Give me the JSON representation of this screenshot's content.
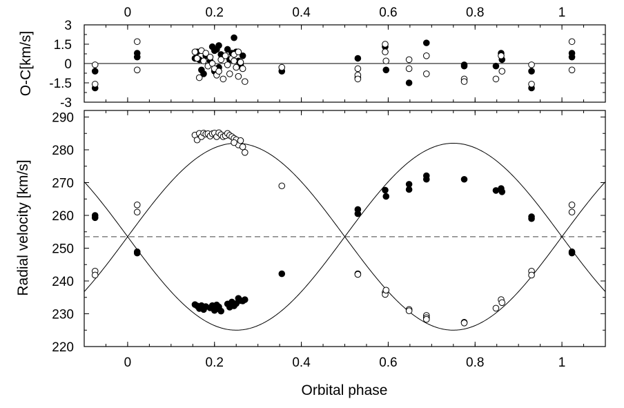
{
  "chart_data": [
    {
      "type": "scatter",
      "panel": "residuals",
      "title": "",
      "xlabel": "",
      "ylabel": "O-C[km/s]",
      "xlim": [
        -0.1,
        1.1
      ],
      "ylim": [
        -3,
        3
      ],
      "xticks": [
        0,
        0.2,
        0.4,
        0.6,
        0.8,
        1
      ],
      "xtick_labels": [
        "0",
        "0.2",
        "0.4",
        "0.6",
        "0.8",
        "1"
      ],
      "yticks": [
        3,
        1.5,
        0,
        -1.5,
        -3
      ],
      "ytick_labels": [
        "3",
        "1.5",
        "0",
        "-1.5",
        "-3"
      ],
      "reference_line": 0,
      "grid": false,
      "series": [
        {
          "marker": "filled",
          "x": [
            -0.075,
            -0.075,
            0.022,
            0.022,
            0.155,
            0.16,
            0.165,
            0.17,
            0.175,
            0.18,
            0.19,
            0.195,
            0.2,
            0.205,
            0.21,
            0.215,
            0.2,
            0.21,
            0.23,
            0.24,
            0.245,
            0.25,
            0.255,
            0.26,
            0.265,
            0.235,
            0.355,
            0.53,
            0.53,
            0.593,
            0.595,
            0.648,
            0.688,
            0.775,
            0.775,
            0.848,
            0.86,
            0.862,
            0.93,
            0.93,
            1.023,
            1.023
          ],
          "y": [
            -0.6,
            -1.9,
            0.5,
            0.8,
            0.4,
            0.9,
            0.3,
            -0.5,
            -0.8,
            0.6,
            0.2,
            1.3,
            1.0,
            1.1,
            1.4,
            0.7,
            -0.6,
            -0.3,
            1.1,
            0.8,
            2.0,
            0.9,
            0.2,
            -0.1,
            0.6,
            0.3,
            -0.6,
            0.4,
            -1.1,
            1.3,
            -0.5,
            -1.5,
            1.6,
            -0.2,
            -0.1,
            -0.2,
            0.8,
            0.3,
            -0.6,
            -1.9,
            0.5,
            0.8
          ]
        },
        {
          "marker": "open",
          "x": [
            -0.075,
            -0.075,
            0.022,
            0.022,
            0.155,
            0.16,
            0.165,
            0.17,
            0.175,
            0.18,
            0.185,
            0.19,
            0.195,
            0.2,
            0.205,
            0.21,
            0.215,
            0.22,
            0.225,
            0.23,
            0.235,
            0.24,
            0.245,
            0.25,
            0.255,
            0.26,
            0.265,
            0.27,
            0.245,
            0.255,
            0.355,
            0.53,
            0.53,
            0.53,
            0.593,
            0.593,
            0.595,
            0.648,
            0.648,
            0.688,
            0.688,
            0.775,
            0.775,
            0.848,
            0.86,
            0.862,
            0.93,
            0.93,
            1.023,
            1.023
          ],
          "y": [
            -0.1,
            -1.6,
            1.7,
            -0.5,
            0.9,
            0.4,
            -1.1,
            1.0,
            0.2,
            0.8,
            -0.2,
            0.5,
            0.0,
            -0.4,
            -0.9,
            -0.6,
            0.3,
            -1.2,
            0.6,
            -0.1,
            -0.8,
            0.4,
            0.7,
            -0.3,
            0.9,
            0.1,
            -0.4,
            -1.4,
            0.2,
            -1.0,
            -0.3,
            -0.4,
            -0.9,
            -1.2,
            1.5,
            0.9,
            0.2,
            0.3,
            -0.4,
            0.6,
            -0.8,
            -1.2,
            -1.4,
            -1.2,
            0.6,
            -0.6,
            -0.1,
            -1.6,
            1.7,
            -0.5
          ]
        }
      ]
    },
    {
      "type": "scatter",
      "panel": "radial-velocity",
      "title": "",
      "xlabel": "Orbital phase",
      "ylabel": "Radial velocity [km/s]",
      "xlim": [
        -0.1,
        1.1
      ],
      "ylim": [
        220,
        292
      ],
      "xticks": [
        0,
        0.2,
        0.4,
        0.6,
        0.8,
        1
      ],
      "xtick_labels": [
        "0",
        "0.2",
        "0.4",
        "0.6",
        "0.8",
        "1"
      ],
      "yticks": [
        220,
        230,
        240,
        250,
        260,
        270,
        280,
        290
      ],
      "ytick_labels": [
        "220",
        "230",
        "240",
        "250",
        "260",
        "270",
        "280",
        "290"
      ],
      "systemic_velocity": 253.5,
      "grid": false,
      "series": [
        {
          "marker": "filled",
          "x": [
            -0.075,
            -0.075,
            0.022,
            0.022,
            0.155,
            0.16,
            0.165,
            0.17,
            0.175,
            0.18,
            0.19,
            0.195,
            0.2,
            0.205,
            0.21,
            0.215,
            0.2,
            0.21,
            0.23,
            0.235,
            0.24,
            0.245,
            0.25,
            0.255,
            0.26,
            0.265,
            0.27,
            0.355,
            0.53,
            0.53,
            0.593,
            0.595,
            0.648,
            0.648,
            0.688,
            0.688,
            0.775,
            0.848,
            0.86,
            0.862,
            0.93,
            0.93,
            1.023,
            1.023
          ],
          "y": [
            259.3,
            260.0,
            248.9,
            248.5,
            232.8,
            232.4,
            231.6,
            232.5,
            231.3,
            232.2,
            231.8,
            232.5,
            231.0,
            232.7,
            231.5,
            230.8,
            231.9,
            232.1,
            233.0,
            232.0,
            233.6,
            232.4,
            233.1,
            234.7,
            234.0,
            233.9,
            234.3,
            242.2,
            261.8,
            260.5,
            267.7,
            265.8,
            269.5,
            267.9,
            272.1,
            271.0,
            271.0,
            267.6,
            268.2,
            267.2,
            259.6,
            259.0,
            248.9,
            248.5
          ]
        },
        {
          "marker": "open",
          "x": [
            -0.075,
            -0.075,
            0.022,
            0.022,
            0.155,
            0.16,
            0.165,
            0.17,
            0.175,
            0.18,
            0.185,
            0.19,
            0.195,
            0.2,
            0.205,
            0.21,
            0.215,
            0.22,
            0.225,
            0.23,
            0.235,
            0.24,
            0.245,
            0.25,
            0.255,
            0.26,
            0.265,
            0.27,
            0.245,
            0.355,
            0.53,
            0.53,
            0.593,
            0.593,
            0.595,
            0.648,
            0.648,
            0.688,
            0.688,
            0.688,
            0.775,
            0.775,
            0.848,
            0.86,
            0.862,
            0.93,
            0.93,
            1.023,
            1.023
          ],
          "y": [
            243.0,
            241.8,
            263.2,
            261.0,
            284.5,
            283.0,
            285.0,
            284.0,
            285.1,
            284.8,
            284.9,
            284.2,
            284.9,
            285.1,
            284.0,
            285.2,
            284.6,
            284.0,
            284.3,
            285.0,
            284.4,
            284.0,
            283.5,
            283.1,
            281.5,
            282.8,
            280.9,
            279.2,
            282.2,
            269.0,
            242.2,
            242.0,
            236.5,
            235.9,
            237.2,
            231.3,
            230.9,
            229.5,
            228.8,
            228.3,
            227.4,
            227.2,
            231.7,
            234.3,
            233.4,
            243.0,
            241.8,
            263.2,
            261.0
          ]
        }
      ],
      "model_curves": [
        {
          "K": 28.5,
          "phase_of_max": 0.75,
          "gamma": 253.5
        },
        {
          "K": 28.5,
          "phase_of_max": 0.25,
          "gamma": 253.5
        }
      ]
    }
  ]
}
